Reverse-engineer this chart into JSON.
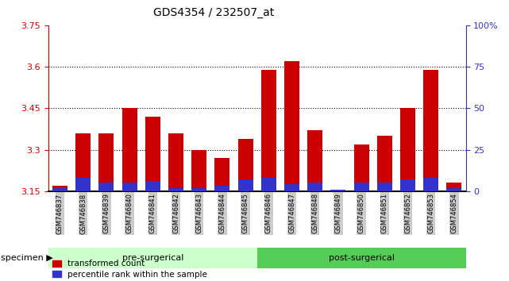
{
  "title": "GDS4354 / 232507_at",
  "samples": [
    "GSM746837",
    "GSM746838",
    "GSM746839",
    "GSM746840",
    "GSM746841",
    "GSM746842",
    "GSM746843",
    "GSM746844",
    "GSM746845",
    "GSM746846",
    "GSM746847",
    "GSM746848",
    "GSM746849",
    "GSM746850",
    "GSM746851",
    "GSM746852",
    "GSM746853",
    "GSM746854"
  ],
  "red_values": [
    3.17,
    3.36,
    3.36,
    3.45,
    3.42,
    3.36,
    3.3,
    3.27,
    3.34,
    3.59,
    3.62,
    3.37,
    3.155,
    3.32,
    3.35,
    3.45,
    3.59,
    3.18
  ],
  "blue_values": [
    2,
    8,
    5,
    5,
    6,
    2,
    2,
    3,
    7,
    8,
    4,
    5,
    1,
    5,
    5,
    7,
    8,
    2
  ],
  "ymin": 3.15,
  "ymax": 3.75,
  "yticks": [
    3.15,
    3.3,
    3.45,
    3.6,
    3.75
  ],
  "ytick_labels": [
    "3.15",
    "3.3",
    "3.45",
    "3.6",
    "3.75"
  ],
  "right_yticks": [
    0,
    25,
    50,
    75,
    100
  ],
  "right_ytick_labels": [
    "0",
    "25",
    "50",
    "75",
    "100%"
  ],
  "pre_surgical_count": 9,
  "post_surgical_count": 9,
  "pre_label": "pre-surgerical",
  "post_label": "post-surgerical",
  "specimen_label": "specimen",
  "legend_red": "transformed count",
  "legend_blue": "percentile rank within the sample",
  "bar_width": 0.65,
  "red_color": "#cc0000",
  "blue_color": "#3333cc",
  "pre_bg": "#ccffcc",
  "post_bg": "#55cc55",
  "tick_label_bg": "#cccccc",
  "grid_color": "#000000"
}
